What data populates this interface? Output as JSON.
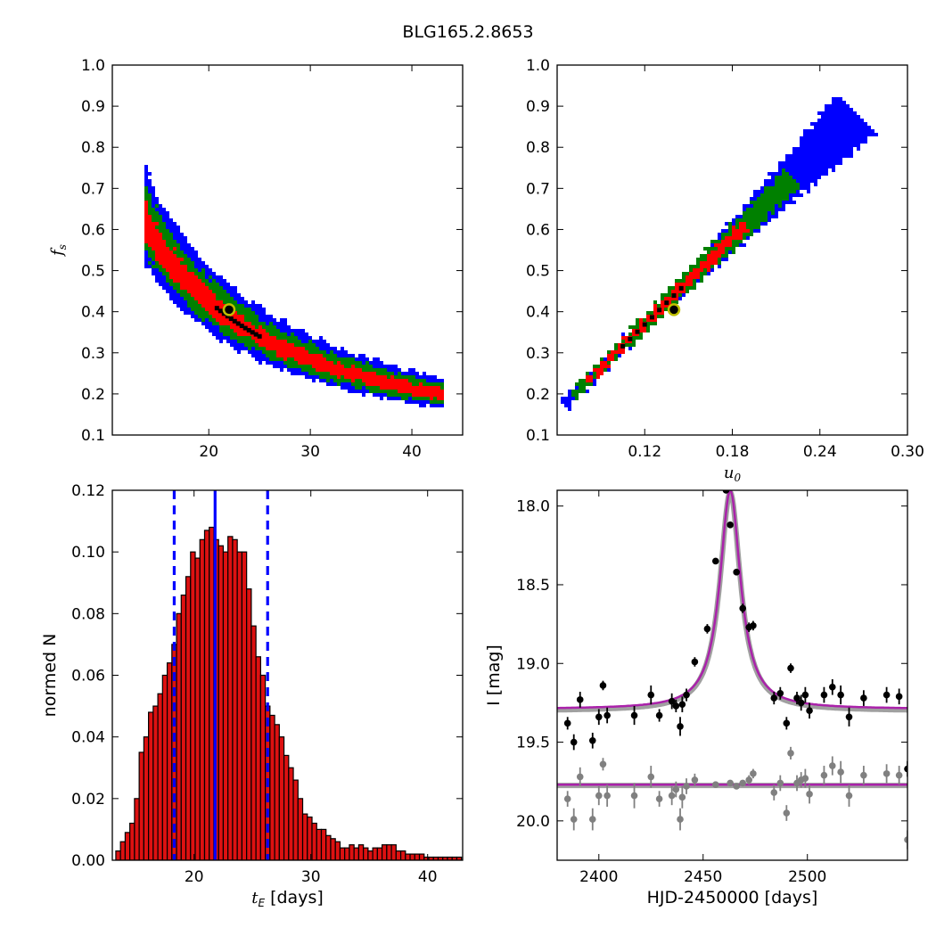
{
  "figure": {
    "title": "BLG165.2.8653"
  },
  "colors": {
    "sigma1": "#ff0000",
    "sigma2": "#008000",
    "sigma3": "#0000ff",
    "best": "#000000",
    "marker_ring": "#bfbf00",
    "hist_bar": "#dd1111",
    "median_line": "#0000ff",
    "model_line": "#aa22aa",
    "model_band": "#888888",
    "data_primary": "#000000",
    "data_secondary": "#808080"
  },
  "chart_data": [
    {
      "id": "tE_fs",
      "type": "heatmap",
      "description_of_points": "posterior density regions (1-sigma red, 2-sigma green, 3-sigma blue)",
      "xlabel": "",
      "ylabel": "f_s",
      "xlim": [
        10.5,
        45
      ],
      "ylim": [
        0.1,
        1.0
      ],
      "xticks": [
        20,
        30,
        40
      ],
      "yticks": [
        0.1,
        0.2,
        0.3,
        0.4,
        0.5,
        0.6,
        0.7,
        0.8,
        0.9,
        1.0
      ],
      "xticklabels": [
        "20",
        "30",
        "40"
      ],
      "yticklabels": [
        "0.1",
        "0.2",
        "0.3",
        "0.4",
        "0.5",
        "0.6",
        "0.7",
        "0.8",
        "0.9",
        "1.0"
      ],
      "band_relation": "fs * tE ~ 8.5 (curved ridge)",
      "best_fit": {
        "x": 22.0,
        "y": 0.405
      }
    },
    {
      "id": "u0_fs",
      "type": "heatmap",
      "xlabel": "u_0",
      "ylabel": "",
      "xlim": [
        0.06,
        0.3
      ],
      "ylim": [
        0.1,
        1.0
      ],
      "xticks": [
        0.12,
        0.18,
        0.24,
        0.3
      ],
      "yticks": [
        0.1,
        0.2,
        0.3,
        0.4,
        0.5,
        0.6,
        0.7,
        0.8,
        0.9,
        1.0
      ],
      "xticklabels": [
        "0.12",
        "0.18",
        "0.24",
        "0.30"
      ],
      "yticklabels": [
        "0.1",
        "0.2",
        "0.3",
        "0.4",
        "0.5",
        "0.6",
        "0.7",
        "0.8",
        "0.9",
        "1.0"
      ],
      "band_from": [
        0.065,
        0.175
      ],
      "band_to": [
        0.265,
        0.88
      ],
      "best_fit": {
        "x": 0.14,
        "y": 0.405
      }
    },
    {
      "id": "tE_hist",
      "type": "bar",
      "xlabel": "t_E  [days]",
      "ylabel": "normed N",
      "xlim": [
        13,
        43
      ],
      "ylim": [
        0.0,
        0.12
      ],
      "xticks": [
        20,
        30,
        40
      ],
      "yticks": [
        0.0,
        0.02,
        0.04,
        0.06,
        0.08,
        0.1,
        0.12
      ],
      "xticklabels": [
        "20",
        "30",
        "40"
      ],
      "yticklabels": [
        "0.00",
        "0.02",
        "0.04",
        "0.06",
        "0.08",
        "0.10",
        "0.12"
      ],
      "bin_start": 13.3,
      "bin_width": 0.4,
      "values": [
        0.003,
        0.006,
        0.009,
        0.012,
        0.02,
        0.035,
        0.04,
        0.048,
        0.05,
        0.054,
        0.06,
        0.064,
        0.07,
        0.08,
        0.086,
        0.092,
        0.1,
        0.098,
        0.104,
        0.107,
        0.108,
        0.104,
        0.102,
        0.1,
        0.105,
        0.104,
        0.1,
        0.1,
        0.088,
        0.076,
        0.066,
        0.06,
        0.05,
        0.047,
        0.044,
        0.04,
        0.034,
        0.03,
        0.026,
        0.02,
        0.015,
        0.014,
        0.012,
        0.01,
        0.01,
        0.008,
        0.007,
        0.006,
        0.004,
        0.004,
        0.005,
        0.004,
        0.005,
        0.004,
        0.003,
        0.004,
        0.004,
        0.005,
        0.005,
        0.005,
        0.003,
        0.003,
        0.002,
        0.002,
        0.002,
        0.002,
        0.001,
        0.001,
        0.001,
        0.001,
        0.001,
        0.001,
        0.001,
        0.001
      ],
      "median": 21.8,
      "lower": 18.3,
      "upper": 26.3
    },
    {
      "id": "lightcurve",
      "type": "scatter",
      "xlabel": "HJD-2450000 [days]",
      "ylabel": "I [mag]",
      "xlim": [
        2380,
        2548
      ],
      "ylim": [
        20.25,
        17.9
      ],
      "xticks": [
        2400,
        2450,
        2500
      ],
      "yticks": [
        18.0,
        18.5,
        19.0,
        19.5,
        20.0
      ],
      "xticklabels": [
        "2400",
        "2450",
        "2500"
      ],
      "yticklabels": [
        "18.0",
        "18.5",
        "19.0",
        "19.5",
        "20.0"
      ],
      "model_primary": {
        "t0": 2463.0,
        "base": 19.29,
        "peak": 17.9,
        "width": 6.0
      },
      "model_secondary": {
        "level": 19.77
      },
      "series": [
        {
          "points": [
            [
              2385,
              19.38,
              0.04
            ],
            [
              2388,
              19.5,
              0.05
            ],
            [
              2391,
              19.23,
              0.05
            ],
            [
              2397,
              19.49,
              0.05
            ],
            [
              2400,
              19.34,
              0.05
            ],
            [
              2402,
              19.14,
              0.03
            ],
            [
              2404,
              19.33,
              0.05
            ],
            [
              2417,
              19.33,
              0.06
            ],
            [
              2425,
              19.2,
              0.06
            ],
            [
              2429,
              19.33,
              0.04
            ],
            [
              2435,
              19.24,
              0.05
            ],
            [
              2437,
              19.27,
              0.04
            ],
            [
              2439,
              19.4,
              0.06
            ],
            [
              2440,
              19.26,
              0.05
            ],
            [
              2442,
              19.2,
              0.04
            ],
            [
              2446,
              18.99,
              0.03
            ],
            [
              2452,
              18.78,
              0.03
            ],
            [
              2456,
              18.35,
              0.02
            ],
            [
              2461,
              17.9,
              0.01
            ],
            [
              2463,
              18.12,
              0.02
            ],
            [
              2466,
              18.42,
              0.02
            ],
            [
              2469,
              18.65,
              0.03
            ],
            [
              2472,
              18.77,
              0.03
            ],
            [
              2474,
              18.76,
              0.03
            ],
            [
              2484,
              19.22,
              0.04
            ],
            [
              2487,
              19.19,
              0.04
            ],
            [
              2490,
              19.38,
              0.04
            ],
            [
              2492,
              19.03,
              0.03
            ],
            [
              2495,
              19.22,
              0.04
            ],
            [
              2497,
              19.25,
              0.05
            ],
            [
              2499,
              19.2,
              0.05
            ],
            [
              2501,
              19.3,
              0.05
            ],
            [
              2508,
              19.2,
              0.05
            ],
            [
              2512,
              19.15,
              0.05
            ],
            [
              2516,
              19.2,
              0.06
            ],
            [
              2520,
              19.34,
              0.06
            ],
            [
              2527,
              19.22,
              0.05
            ],
            [
              2538,
              19.2,
              0.05
            ],
            [
              2544,
              19.21,
              0.05
            ],
            [
              2548,
              19.67,
              0.05
            ]
          ]
        },
        {
          "points": [
            [
              2385,
              19.86,
              0.05
            ],
            [
              2388,
              19.99,
              0.07
            ],
            [
              2391,
              19.72,
              0.06
            ],
            [
              2397,
              19.99,
              0.07
            ],
            [
              2400,
              19.84,
              0.06
            ],
            [
              2402,
              19.64,
              0.04
            ],
            [
              2404,
              19.84,
              0.07
            ],
            [
              2417,
              19.84,
              0.08
            ],
            [
              2425,
              19.72,
              0.07
            ],
            [
              2429,
              19.86,
              0.05
            ],
            [
              2435,
              19.84,
              0.06
            ],
            [
              2437,
              19.8,
              0.05
            ],
            [
              2439,
              19.99,
              0.07
            ],
            [
              2440,
              19.85,
              0.07
            ],
            [
              2442,
              19.78,
              0.05
            ],
            [
              2446,
              19.74,
              0.04
            ],
            [
              2456,
              19.77,
              0.02
            ],
            [
              2463,
              19.76,
              0.02
            ],
            [
              2466,
              19.78,
              0.02
            ],
            [
              2469,
              19.76,
              0.02
            ],
            [
              2472,
              19.74,
              0.03
            ],
            [
              2474,
              19.7,
              0.03
            ],
            [
              2484,
              19.82,
              0.05
            ],
            [
              2487,
              19.76,
              0.05
            ],
            [
              2490,
              19.95,
              0.05
            ],
            [
              2492,
              19.57,
              0.04
            ],
            [
              2495,
              19.76,
              0.05
            ],
            [
              2497,
              19.74,
              0.05
            ],
            [
              2499,
              19.73,
              0.06
            ],
            [
              2501,
              19.83,
              0.06
            ],
            [
              2508,
              19.71,
              0.06
            ],
            [
              2512,
              19.65,
              0.06
            ],
            [
              2516,
              19.69,
              0.07
            ],
            [
              2520,
              19.84,
              0.07
            ],
            [
              2527,
              19.71,
              0.06
            ],
            [
              2538,
              19.7,
              0.06
            ],
            [
              2544,
              19.71,
              0.06
            ],
            [
              2548,
              20.12,
              0.06
            ]
          ]
        }
      ]
    }
  ]
}
